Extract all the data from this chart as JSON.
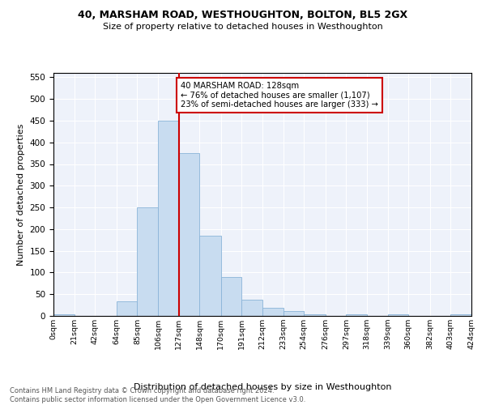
{
  "title1": "40, MARSHAM ROAD, WESTHOUGHTON, BOLTON, BL5 2GX",
  "title2": "Size of property relative to detached houses in Westhoughton",
  "xlabel": "Distribution of detached houses by size in Westhoughton",
  "ylabel": "Number of detached properties",
  "footnote1": "Contains HM Land Registry data © Crown copyright and database right 2024.",
  "footnote2": "Contains public sector information licensed under the Open Government Licence v3.0.",
  "annotation_line1": "40 MARSHAM ROAD: 128sqm",
  "annotation_line2": "← 76% of detached houses are smaller (1,107)",
  "annotation_line3": "23% of semi-detached houses are larger (333) →",
  "bar_edges": [
    0,
    21,
    42,
    64,
    85,
    106,
    127,
    148,
    170,
    191,
    212,
    233,
    254,
    276,
    297,
    318,
    339,
    360,
    382,
    403,
    424
  ],
  "bar_heights": [
    3,
    0,
    0,
    33,
    250,
    450,
    375,
    185,
    90,
    38,
    18,
    11,
    3,
    0,
    3,
    0,
    4,
    0,
    0,
    3
  ],
  "bar_color": "#c8dcf0",
  "bar_edge_color": "#8ab4d8",
  "vline_x": 127,
  "vline_color": "#cc0000",
  "box_color": "#cc0000",
  "background_color": "#eef2fa",
  "ylim": [
    0,
    560
  ],
  "yticks": [
    0,
    50,
    100,
    150,
    200,
    250,
    300,
    350,
    400,
    450,
    500,
    550
  ],
  "x_tick_labels": [
    "0sqm",
    "21sqm",
    "42sqm",
    "64sqm",
    "85sqm",
    "106sqm",
    "127sqm",
    "148sqm",
    "170sqm",
    "191sqm",
    "212sqm",
    "233sqm",
    "254sqm",
    "276sqm",
    "297sqm",
    "318sqm",
    "339sqm",
    "360sqm",
    "382sqm",
    "403sqm",
    "424sqm"
  ]
}
